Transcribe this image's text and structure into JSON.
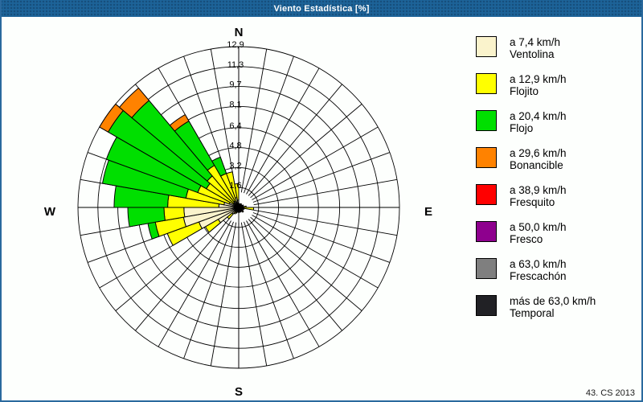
{
  "window": {
    "title": "Viento Estadística [%]",
    "footer": "43. CS 2013",
    "title_bar_color": "#1d6398",
    "border_color": "#2a6a9e",
    "background_color": "#fdfffd"
  },
  "chart_data": {
    "type": "bar",
    "subtype": "wind-rose-stacked-polar",
    "units": "%",
    "grid": true,
    "sector_width_deg": 10,
    "sector_start_degrees_from_north": [
      0,
      10,
      20,
      30,
      40,
      50,
      60,
      70,
      80,
      90,
      100,
      110,
      120,
      130,
      140,
      150,
      160,
      170,
      180,
      190,
      200,
      210,
      220,
      230,
      240,
      250,
      260,
      270,
      280,
      290,
      300,
      310,
      320,
      330,
      340,
      350
    ],
    "max_value": 12.9,
    "ring_values": [
      1.6,
      3.2,
      4.8,
      6.4,
      8.1,
      9.7,
      11.3,
      12.9
    ],
    "ring_labels": [
      "1,6",
      "3,2",
      "4,8",
      "6,4",
      "8,1",
      "9,7",
      "11,3",
      "12,9"
    ],
    "compass_labels": [
      {
        "text": "N",
        "angle": 0
      },
      {
        "text": "E",
        "angle": 90
      },
      {
        "text": "S",
        "angle": 180
      },
      {
        "text": "W",
        "angle": 270
      }
    ],
    "legend_position": "right",
    "series": [
      {
        "name": "Ventolina",
        "speed_label": "a 7,4 km/h",
        "color": "#faf3cc",
        "values": [
          0.15,
          0.2,
          0.15,
          0.2,
          0.15,
          0.2,
          0.25,
          0.2,
          0.3,
          0.3,
          0.25,
          0.2,
          0.25,
          0.3,
          0.2,
          0.25,
          0.2,
          0.25,
          0.2,
          0.25,
          0.3,
          0.35,
          0.7,
          1.9,
          3.4,
          4.5,
          4.4,
          1.6,
          1.2,
          0.8,
          0.5,
          0.5,
          0.6,
          0.5,
          0.8,
          0.6
        ]
      },
      {
        "name": "Flojito",
        "speed_label": "a 12,9 km/h",
        "color": "#ffff00",
        "values": [
          0.15,
          0.1,
          0.1,
          0.15,
          0.1,
          0.1,
          0.15,
          0.15,
          0.3,
          0.9,
          0.2,
          0.1,
          0.15,
          0.2,
          0.1,
          0.15,
          0.1,
          0.15,
          0.1,
          0.15,
          0.2,
          0.25,
          0.5,
          1.2,
          2.7,
          2.3,
          1.6,
          4.1,
          3.1,
          2.7,
          2.5,
          2.8,
          3.3,
          2.4,
          2.1,
          1.3
        ]
      },
      {
        "name": "Flojo",
        "speed_label": "a 20,4 km/h",
        "color": "#00df00",
        "values": [
          0,
          0,
          0,
          0,
          0,
          0,
          0,
          0,
          0,
          0,
          0,
          0,
          0,
          0,
          0,
          0,
          0,
          0,
          0,
          0,
          0,
          0,
          0,
          0,
          0,
          0.6,
          2.9,
          4.3,
          6.8,
          7.8,
          9.1,
          7.9,
          4.1,
          1.4,
          0,
          0
        ]
      },
      {
        "name": "Bonancible",
        "speed_label": "a 29,6 km/h",
        "color": "#ff8200",
        "values": [
          0,
          0,
          0,
          0,
          0,
          0,
          0,
          0,
          0,
          0,
          0,
          0,
          0,
          0,
          0,
          0,
          0,
          0,
          0,
          0,
          0,
          0,
          0,
          0,
          0,
          0,
          0,
          0,
          0,
          0,
          0.8,
          1.3,
          0.6,
          0,
          0,
          0
        ]
      },
      {
        "name": "Fresquito",
        "speed_label": "a 38,9 km/h",
        "color": "#ff0000",
        "values": [
          0,
          0,
          0,
          0,
          0,
          0,
          0,
          0,
          0,
          0,
          0,
          0,
          0,
          0,
          0,
          0,
          0,
          0,
          0,
          0,
          0,
          0,
          0,
          0,
          0,
          0,
          0,
          0,
          0,
          0,
          0,
          0,
          0,
          0,
          0,
          0
        ]
      },
      {
        "name": "Fresco",
        "speed_label": "a 50,0 km/h",
        "color": "#8e008e",
        "values": [
          0,
          0,
          0,
          0,
          0,
          0,
          0,
          0,
          0,
          0,
          0,
          0,
          0,
          0,
          0,
          0,
          0,
          0,
          0,
          0,
          0,
          0,
          0,
          0,
          0,
          0,
          0,
          0,
          0,
          0,
          0,
          0,
          0,
          0,
          0,
          0
        ]
      },
      {
        "name": "Frescachón",
        "speed_label": "a 63,0 km/h",
        "color": "#7f7f7f",
        "values": [
          0,
          0,
          0,
          0,
          0,
          0,
          0,
          0,
          0,
          0,
          0,
          0,
          0,
          0,
          0,
          0,
          0,
          0,
          0,
          0,
          0,
          0,
          0,
          0,
          0,
          0,
          0,
          0,
          0,
          0,
          0,
          0,
          0,
          0,
          0,
          0
        ]
      },
      {
        "name": "Temporal",
        "speed_label": "más de 63,0 km/h",
        "color": "#212125",
        "values": [
          0,
          0,
          0,
          0,
          0,
          0,
          0,
          0,
          0,
          0,
          0,
          0,
          0,
          0,
          0,
          0,
          0,
          0,
          0,
          0,
          0,
          0,
          0,
          0,
          0,
          0,
          0,
          0,
          0,
          0,
          0,
          0,
          0,
          0,
          0,
          0
        ]
      }
    ]
  }
}
